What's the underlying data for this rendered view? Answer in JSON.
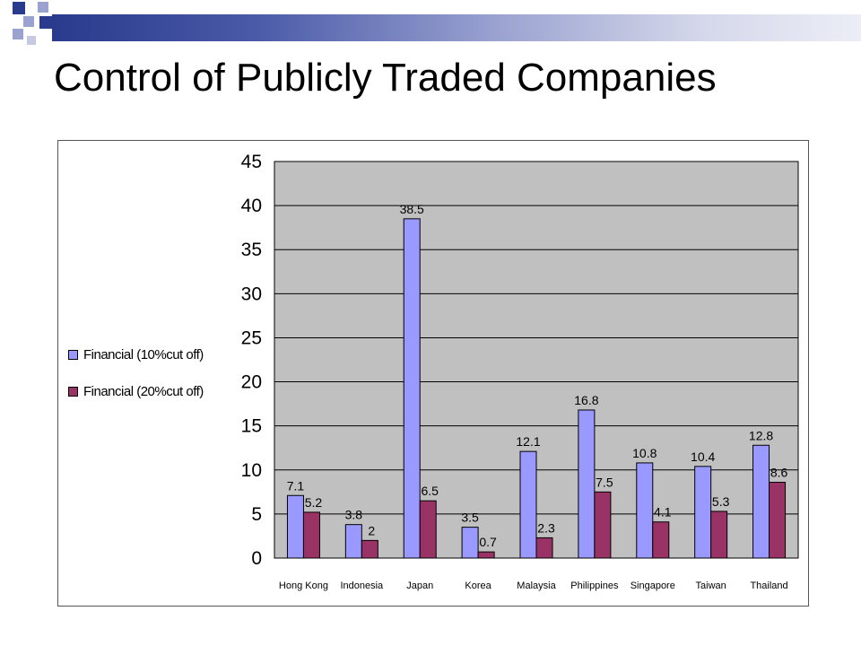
{
  "slide": {
    "title": "Control of Publicly Traded Companies",
    "accent_dark": "#2a3a8c",
    "accent_light": "#9aa2d0"
  },
  "chart_data": {
    "type": "bar",
    "title": "",
    "xlabel": "",
    "ylabel": "",
    "ylim": [
      0,
      45
    ],
    "yticks": [
      "0",
      "5",
      "10",
      "15",
      "20",
      "25",
      "30",
      "35",
      "40",
      "45"
    ],
    "grid": true,
    "legend_position": "left",
    "categories": [
      "Hong Kong",
      "Indonesia",
      "Japan",
      "Korea",
      "Malaysia",
      "Philippines",
      "Singapore",
      "Taiwan",
      "Thailand"
    ],
    "series": [
      {
        "name": "Financial (10%cut off)",
        "color": "#9999ff",
        "values": [
          7.1,
          3.8,
          38.5,
          3.5,
          12.1,
          16.8,
          10.8,
          10.4,
          12.8
        ],
        "labels": [
          "7.1",
          "3.8",
          "38.5",
          "3.5",
          "12.1",
          "16.8",
          "10.8",
          "10.4",
          "12.8"
        ]
      },
      {
        "name": "Financial (20%cut off)",
        "color": "#993366",
        "values": [
          5.2,
          2,
          6.5,
          0.7,
          2.3,
          7.5,
          4.1,
          5.3,
          8.6
        ],
        "labels": [
          "5.2",
          "2",
          "6.5",
          "0.7",
          "2.3",
          "7.5",
          "4.1",
          "5.3",
          "8.6"
        ]
      }
    ]
  }
}
